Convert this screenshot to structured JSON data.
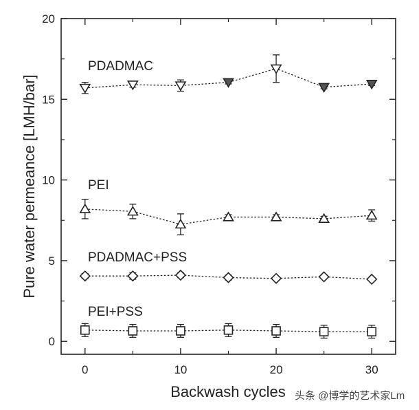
{
  "chart_data": {
    "type": "scatter",
    "xlabel": "Backwash cycles",
    "ylabel": "Pure water permeance [LMH/bar]",
    "xlim": [
      -2.5,
      32.5
    ],
    "ylim": [
      -0.8,
      20
    ],
    "x_ticks": [
      "0",
      "10",
      "20",
      "30"
    ],
    "y_ticks": [
      "0",
      "5",
      "10",
      "15",
      "20"
    ],
    "grid": false,
    "line_style": "dotted",
    "x": [
      0,
      5,
      10,
      15,
      20,
      25,
      30
    ],
    "series": [
      {
        "name": "PDADMAC",
        "marker": "triangle-down",
        "values": [
          15.7,
          15.9,
          15.85,
          16.05,
          16.9,
          15.75,
          15.95
        ],
        "errors": [
          0.35,
          0.15,
          0.35,
          0.1,
          0.85,
          0.1,
          0.1
        ]
      },
      {
        "name": "PEI",
        "marker": "triangle-up",
        "values": [
          8.2,
          8.05,
          7.25,
          7.7,
          7.7,
          7.6,
          7.8
        ],
        "errors": [
          0.6,
          0.45,
          0.65,
          0.15,
          0.15,
          0.15,
          0.35
        ]
      },
      {
        "name": "PDADMAC+PSS",
        "marker": "diamond",
        "values": [
          4.05,
          4.05,
          4.1,
          3.95,
          3.9,
          4.0,
          3.85
        ],
        "errors": [
          0.15,
          0.2,
          0.15,
          0.15,
          0.1,
          0.1,
          0.1
        ]
      },
      {
        "name": "PEI+PSS",
        "marker": "square",
        "values": [
          0.7,
          0.65,
          0.65,
          0.7,
          0.65,
          0.6,
          0.6
        ],
        "errors": [
          0.4,
          0.4,
          0.4,
          0.4,
          0.4,
          0.4,
          0.4
        ]
      }
    ],
    "colors": {
      "axis": "#222222",
      "marker": "#222222",
      "marker_fill": "#ffffff",
      "marker_fill_dark": "#555555"
    },
    "watermark": "头条 @博学的艺术家Lm"
  }
}
